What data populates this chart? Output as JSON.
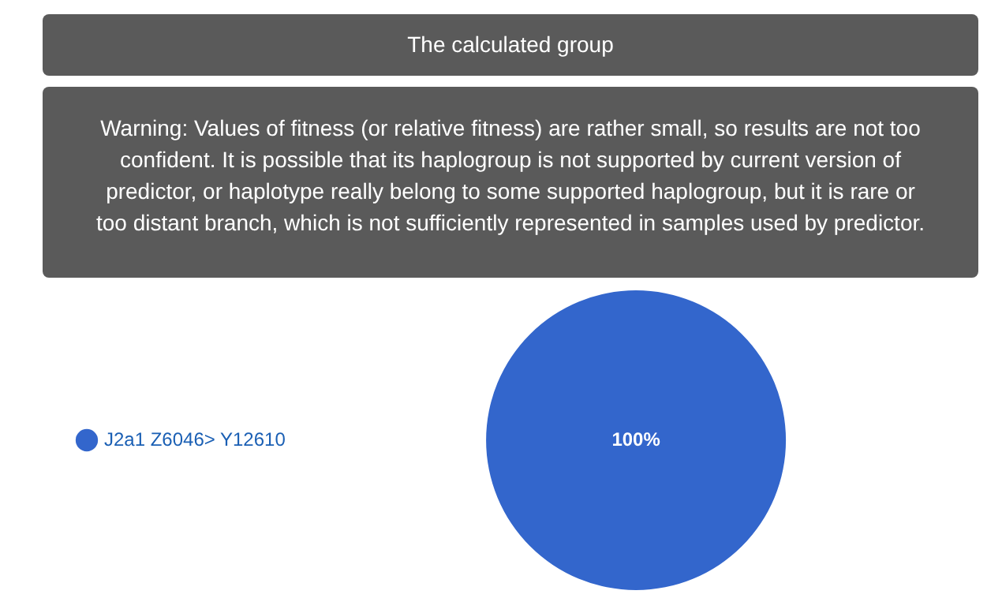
{
  "chart_data": {
    "type": "pie",
    "title": "The calculated group",
    "annotations": [
      "Warning: Values of fitness (or relative fitness) are rather small, so results are not too confident. It is possible that its haplogroup is not supported by current version of predictor, or haplotype really belong to some supported haplogroup, but it is rare or too distant branch, which is not sufficiently represented in samples used by predictor."
    ],
    "categories": [
      "J2a1 Z6046> Y12610"
    ],
    "values": [
      100
    ],
    "colors": [
      "#3366cc"
    ],
    "value_labels": [
      "100%"
    ],
    "legend": "left"
  }
}
